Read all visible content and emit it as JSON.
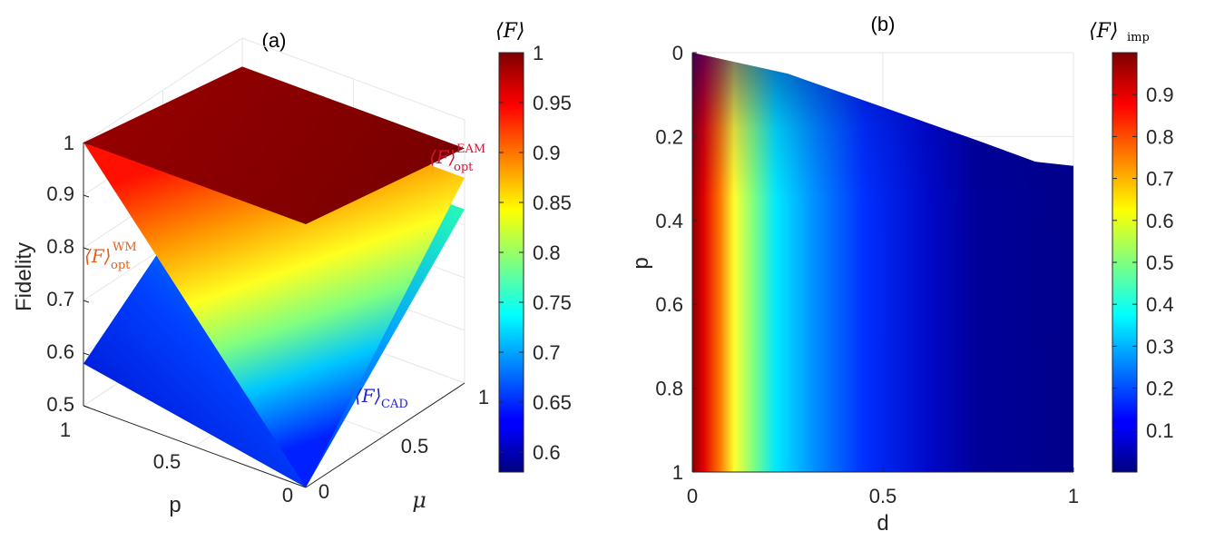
{
  "chart_data": [
    {
      "type": "surface",
      "panel_label": "(a)",
      "zlabel": "Fidelity",
      "xlabel": "p",
      "ylabel": "μ",
      "zlim": [
        0.5,
        1
      ],
      "z_ticks": [
        "0.5",
        "0.6",
        "0.7",
        "0.8",
        "0.9",
        "1"
      ],
      "p_ticks": [
        "1",
        "0.5",
        "0"
      ],
      "mu_ticks": [
        "0",
        "0.5",
        "1"
      ],
      "colorbar": {
        "label": "⟨F⟩",
        "range": [
          0.58,
          1
        ],
        "ticks": [
          "0.6",
          "0.65",
          "0.7",
          "0.75",
          "0.8",
          "0.85",
          "0.9",
          "0.95",
          "1"
        ]
      },
      "surfaces": [
        {
          "name": "⟨F⟩_opt^EAM",
          "label_main": "⟨F⟩",
          "label_sub": "opt",
          "label_sup": "EAM",
          "label_color": "#d6143a",
          "corners": {
            "p1_mu0": 1.0,
            "p0_mu0": 1.0,
            "p1_mu1": 0.946,
            "p0_mu1": 0.946
          }
        },
        {
          "name": "⟨F⟩_opt^WM",
          "label_main": "⟨F⟩",
          "label_sub": "opt",
          "label_sup": "WM",
          "label_color": "#e0601a",
          "corners": {
            "p1_mu0": 1.0,
            "p0_mu0": 0.5,
            "p1_mu1": 0.89,
            "p0_mu1": 0.89
          }
        },
        {
          "name": "⟨F⟩_CAD",
          "label_main": "⟨F⟩",
          "label_sub": "CAD",
          "label_sup": "",
          "label_color": "#1f1fe0",
          "corners": {
            "p1_mu0": 0.58,
            "p0_mu0": 0.5,
            "p1_mu1": 0.83,
            "p0_mu1": 0.83
          }
        }
      ]
    },
    {
      "type": "heatmap",
      "panel_label": "(b)",
      "xlabel": "d",
      "ylabel": "p",
      "xlim": [
        0,
        1
      ],
      "ylim": [
        0,
        1
      ],
      "y_reversed": true,
      "x_ticks": [
        "0",
        "0.5",
        "1"
      ],
      "y_ticks": [
        "0",
        "0.2",
        "0.4",
        "0.6",
        "0.8",
        "1"
      ],
      "boundary_p_at_d": [
        [
          0,
          0
        ],
        [
          0.25,
          0.05
        ],
        [
          0.5,
          0.13
        ],
        [
          0.75,
          0.21
        ],
        [
          0.9,
          0.26
        ],
        [
          1,
          0.27
        ]
      ],
      "colorbar": {
        "label_main": "⟨F⟩",
        "label_sub": "imp",
        "range": [
          0,
          1
        ],
        "ticks": [
          "0.1",
          "0.2",
          "0.3",
          "0.4",
          "0.5",
          "0.6",
          "0.7",
          "0.8",
          "0.9"
        ]
      }
    }
  ]
}
